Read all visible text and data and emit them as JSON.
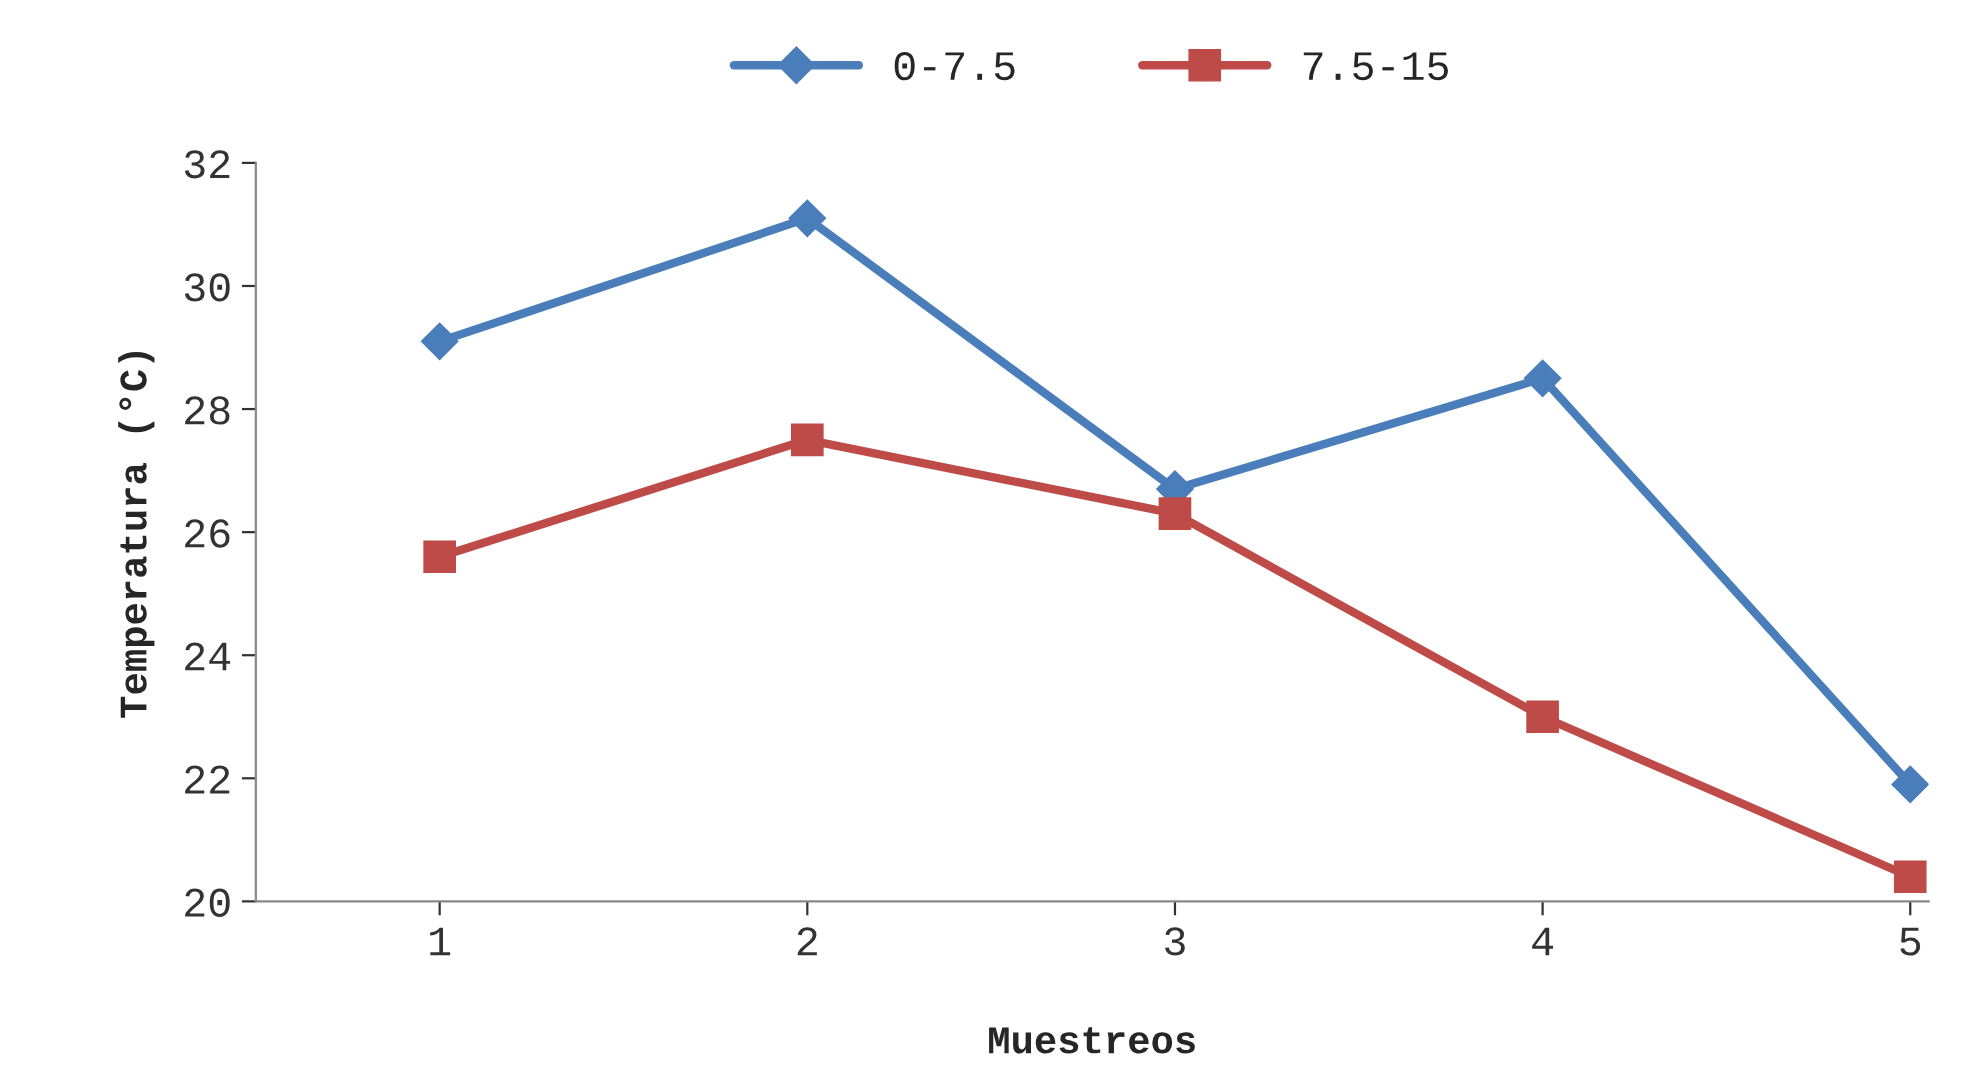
{
  "chart_data": {
    "type": "line",
    "xlabel": "Muestreos",
    "ylabel": "Temperatura (°C)",
    "categories": [
      "1",
      "2",
      "3",
      "4",
      "5"
    ],
    "series": [
      {
        "name": "0-7.5",
        "color": "#4a7ebb",
        "marker": "diamond",
        "values": [
          29.1,
          31.1,
          26.7,
          28.5,
          21.9
        ]
      },
      {
        "name": "7.5-15",
        "color": "#be4b48",
        "marker": "square",
        "values": [
          25.6,
          27.5,
          26.3,
          23.0,
          20.4
        ]
      }
    ],
    "ylim": [
      20,
      32
    ],
    "yticks": [
      20,
      22,
      24,
      26,
      28,
      30,
      32
    ],
    "grid": false,
    "legend": "top",
    "line_style": "solid"
  }
}
